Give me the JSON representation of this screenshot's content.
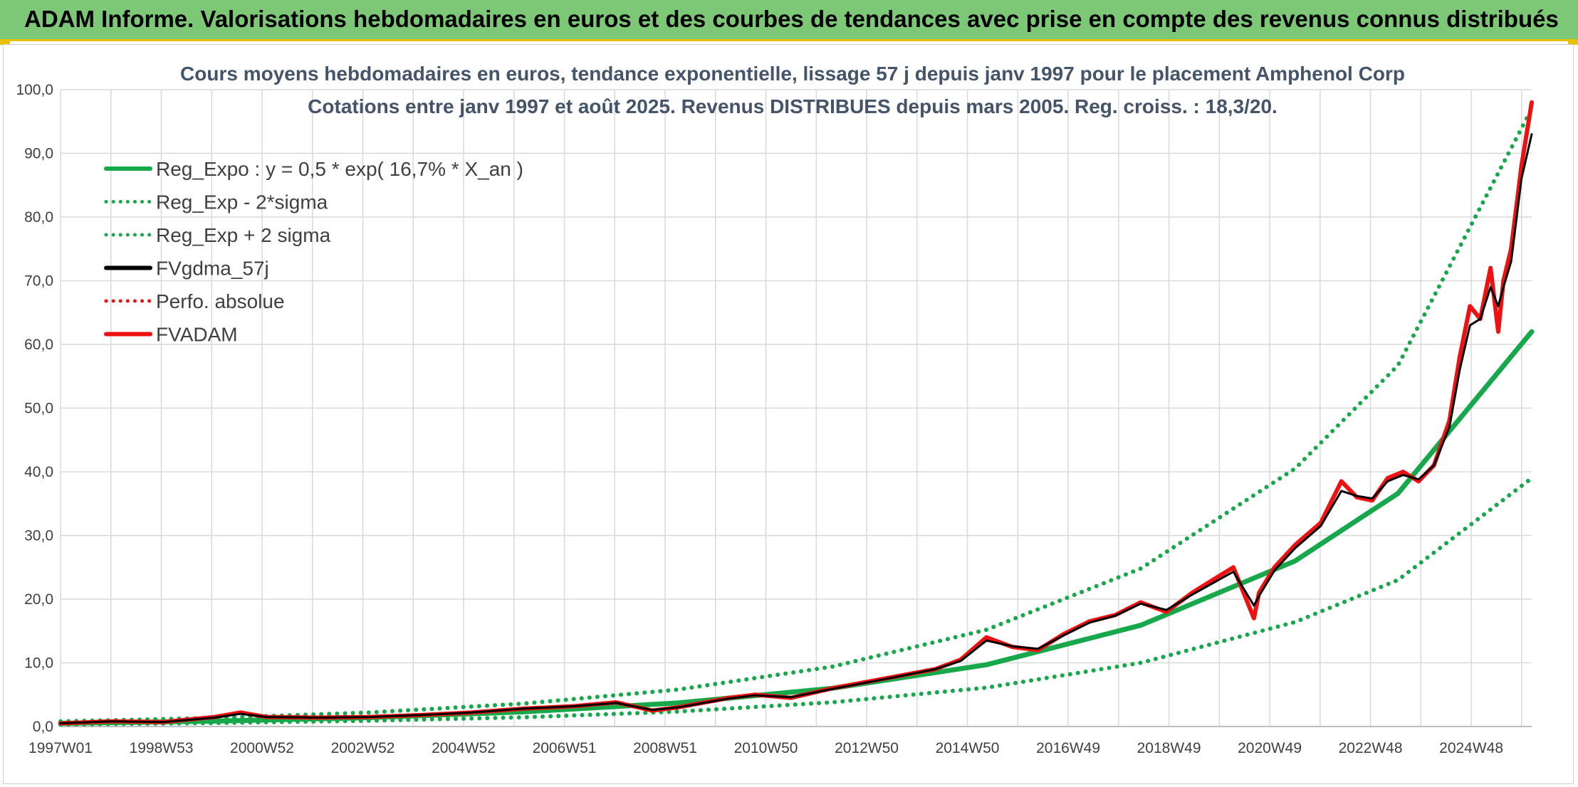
{
  "banner": {
    "title": "ADAM Informe. Valorisations hebdomadaires en euros et des courbes de tendances avec prise en compte des revenus connus distribués"
  },
  "colors": {
    "banner_bg": "#7dc876",
    "banner_accent": "#e8c000",
    "trend_green": "#16a84a",
    "fvgdma_black": "#000000",
    "fvadam_red": "#ee1111"
  },
  "chart_data": {
    "type": "line",
    "title_lines": [
      "Cours moyens hebdomadaires en euros, tendance exponentielle, lissage 57 j depuis janv 1997 pour le placement Amphenol Corp",
      "Cotations entre janv 1997 et août 2025. Revenus DISTRIBUES depuis mars 2005. Reg. croiss. : 18,3/20."
    ],
    "x_tick_labels": [
      "1997W01",
      "1998W53",
      "2000W52",
      "2002W52",
      "2004W52",
      "2006W51",
      "2008W51",
      "2010W50",
      "2012W50",
      "2014W50",
      "2016W49",
      "2018W49",
      "2020W49",
      "2022W48",
      "2024W48"
    ],
    "x_range_years": [
      1997.0,
      2025.6
    ],
    "y_ticks": [
      "0,0",
      "10,0",
      "20,0",
      "30,0",
      "40,0",
      "50,0",
      "60,0",
      "70,0",
      "80,0",
      "90,0",
      "100,0"
    ],
    "ylim": [
      0,
      100
    ],
    "grid": true,
    "legend_position": "top-left",
    "legend": [
      {
        "key": "reg_expo",
        "label": "Reg_Expo : y = 0,5 * exp( 16,7% *  X_an )",
        "color": "#16a84a",
        "style": "solid"
      },
      {
        "key": "reg_minus",
        "label": "Reg_Exp - 2*sigma",
        "color": "#16a84a",
        "style": "dotted"
      },
      {
        "key": "reg_plus",
        "label": "Reg_Exp + 2 sigma",
        "color": "#16a84a",
        "style": "dotted"
      },
      {
        "key": "fvgdma",
        "label": "FVgdma_57j",
        "color": "#000000",
        "style": "solid"
      },
      {
        "key": "perfo",
        "label": "Perfo. absolue",
        "color": "#ee1111",
        "style": "dotted"
      },
      {
        "key": "fvadam",
        "label": "FVADAM",
        "color": "#ee1111",
        "style": "solid"
      }
    ],
    "trend_series": [
      {
        "key": "reg_expo",
        "x": [
          1997.0,
          2000.0,
          2003.0,
          2006.0,
          2009.0,
          2012.0,
          2015.0,
          2018.0,
          2021.0,
          2023.0,
          2025.6
        ],
        "values": [
          0.5,
          0.85,
          1.4,
          2.3,
          3.7,
          6.0,
          9.7,
          15.9,
          26.0,
          36.6,
          62.0
        ]
      },
      {
        "key": "reg_plus",
        "x": [
          1997.0,
          2000.0,
          2003.0,
          2006.0,
          2009.0,
          2012.0,
          2015.0,
          2018.0,
          2021.0,
          2023.0,
          2025.6
        ],
        "values": [
          0.8,
          1.35,
          2.2,
          3.6,
          5.8,
          9.4,
          15.2,
          24.8,
          40.5,
          56.7,
          97.0
        ]
      },
      {
        "key": "reg_minus",
        "x": [
          1997.0,
          2000.0,
          2003.0,
          2006.0,
          2009.0,
          2012.0,
          2015.0,
          2018.0,
          2021.0,
          2023.0,
          2025.6
        ],
        "values": [
          0.3,
          0.55,
          0.9,
          1.45,
          2.35,
          3.8,
          6.1,
          10.0,
          16.4,
          23.0,
          39.0
        ]
      }
    ],
    "price_series": [
      {
        "key": "fvadam",
        "x": [
          1997.0,
          1998.0,
          1999.0,
          2000.0,
          2000.5,
          2001.0,
          2002.0,
          2003.0,
          2004.0,
          2005.0,
          2006.0,
          2007.0,
          2007.8,
          2008.5,
          2009.0,
          2010.0,
          2010.5,
          2011.2,
          2012.0,
          2013.0,
          2014.0,
          2014.5,
          2015.0,
          2015.5,
          2016.0,
          2016.5,
          2017.0,
          2017.5,
          2018.0,
          2018.5,
          2019.0,
          2019.4,
          2019.8,
          2020.2,
          2020.3,
          2020.6,
          2021.0,
          2021.5,
          2021.9,
          2022.2,
          2022.5,
          2022.8,
          2023.1,
          2023.4,
          2023.7,
          2024.0,
          2024.2,
          2024.4,
          2024.6,
          2024.8,
          2024.95,
          2025.05,
          2025.2,
          2025.4,
          2025.6
        ],
        "values": [
          0.5,
          0.8,
          0.7,
          1.5,
          2.2,
          1.5,
          1.4,
          1.5,
          1.8,
          2.2,
          2.8,
          3.2,
          3.8,
          2.5,
          3.0,
          4.5,
          5.0,
          4.5,
          6.0,
          7.5,
          9.0,
          10.5,
          14.0,
          12.5,
          12.0,
          14.5,
          16.5,
          17.5,
          19.5,
          18.0,
          21.0,
          23.0,
          25.0,
          17.0,
          21.0,
          25.0,
          28.5,
          32.0,
          38.5,
          36.0,
          35.5,
          39.0,
          40.0,
          38.5,
          41.0,
          48.0,
          58.0,
          66.0,
          64.0,
          72.0,
          62.0,
          70.0,
          75.0,
          88.0,
          98.0
        ]
      },
      {
        "key": "fvgdma",
        "x": [
          1997.0,
          1998.0,
          1999.0,
          2000.0,
          2000.5,
          2001.0,
          2002.0,
          2003.0,
          2004.0,
          2005.0,
          2006.0,
          2007.0,
          2007.8,
          2008.5,
          2009.0,
          2010.0,
          2010.5,
          2011.2,
          2012.0,
          2013.0,
          2014.0,
          2014.5,
          2015.0,
          2015.5,
          2016.0,
          2016.5,
          2017.0,
          2017.5,
          2018.0,
          2018.5,
          2019.0,
          2019.4,
          2019.8,
          2020.2,
          2020.3,
          2020.6,
          2021.0,
          2021.5,
          2021.9,
          2022.2,
          2022.5,
          2022.8,
          2023.1,
          2023.4,
          2023.7,
          2024.0,
          2024.2,
          2024.4,
          2024.6,
          2024.8,
          2024.95,
          2025.05,
          2025.2,
          2025.4,
          2025.6
        ],
        "values": [
          0.5,
          0.8,
          0.7,
          1.4,
          2.0,
          1.5,
          1.4,
          1.5,
          1.8,
          2.2,
          2.8,
          3.2,
          3.7,
          2.6,
          3.0,
          4.4,
          4.9,
          4.6,
          5.9,
          7.4,
          9.0,
          10.3,
          13.5,
          12.6,
          12.2,
          14.3,
          16.3,
          17.4,
          19.3,
          18.3,
          20.7,
          22.5,
          24.3,
          19.0,
          20.5,
          24.5,
          28.0,
          31.5,
          37.0,
          36.2,
          35.8,
          38.5,
          39.5,
          38.8,
          41.0,
          47.0,
          56.0,
          63.0,
          64.0,
          69.0,
          66.0,
          69.0,
          73.0,
          86.0,
          93.0
        ]
      }
    ]
  }
}
